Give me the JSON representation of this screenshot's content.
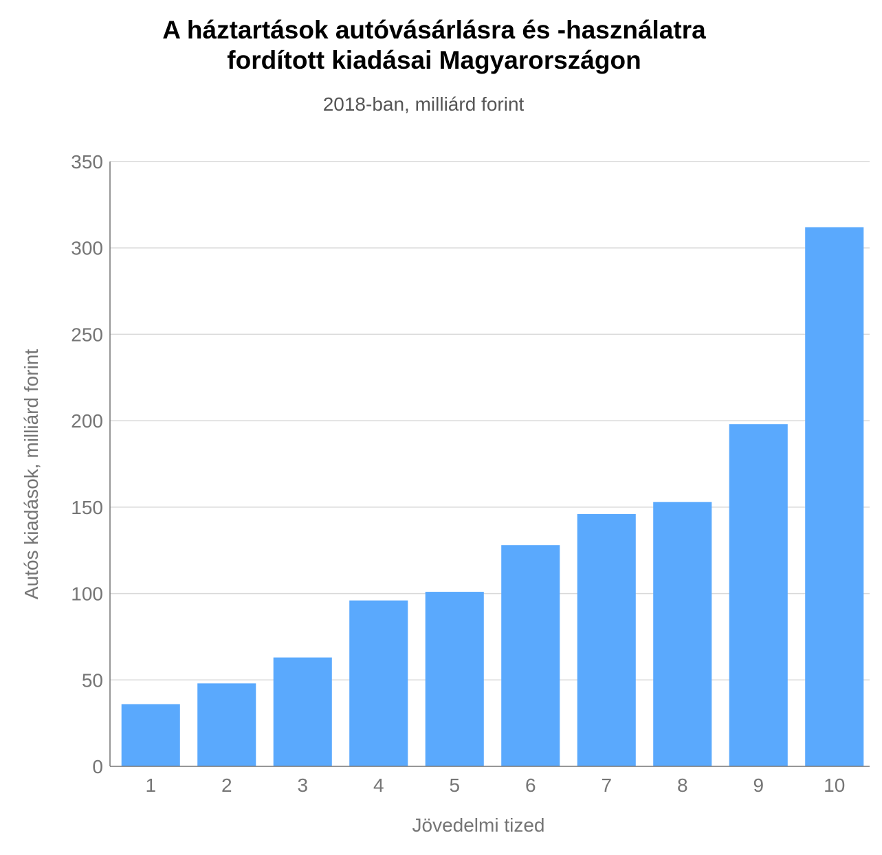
{
  "chart_data": {
    "type": "bar",
    "title_lines": [
      "A háztartások autóvásárlásra és -használatra",
      "fordított kiadásai Magyarországon"
    ],
    "subtitle": "2018-ban, milliárd forint",
    "xlabel": "Jövedelmi tized",
    "ylabel": "Autós kiadások, milliárd forint",
    "categories": [
      "1",
      "2",
      "3",
      "4",
      "5",
      "6",
      "7",
      "8",
      "9",
      "10"
    ],
    "values": [
      36,
      48,
      63,
      96,
      101,
      128,
      146,
      153,
      198,
      312
    ],
    "ylim": [
      0,
      350
    ],
    "yticks": [
      "0",
      "50",
      "100",
      "150",
      "200",
      "250",
      "300",
      "350"
    ],
    "grid": true,
    "colors": {
      "bar": "#5aa9fd",
      "grid": "#d9d9d9",
      "axis": "#757575"
    }
  }
}
